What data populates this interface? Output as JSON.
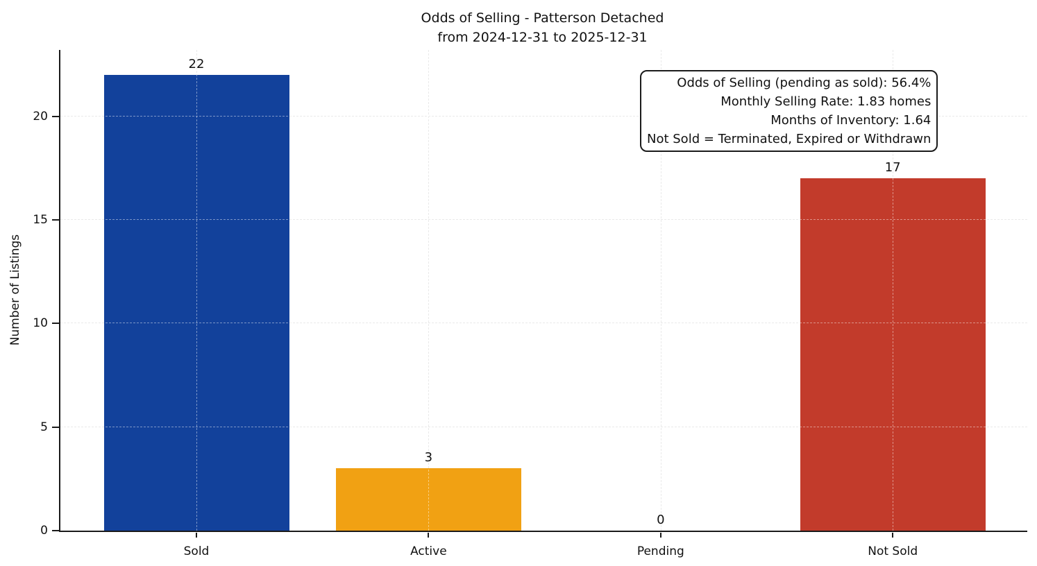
{
  "chart_data": {
    "type": "bar",
    "title_lines": [
      "Odds of Selling - Patterson Detached",
      "from 2024-12-31 to 2025-12-31"
    ],
    "categories": [
      "Sold",
      "Active",
      "Pending",
      "Not Sold"
    ],
    "values": [
      22,
      3,
      0,
      17
    ],
    "bar_value_labels": [
      "22",
      "3",
      "0",
      "17"
    ],
    "bar_colors": [
      "#12419b",
      "#f1a113",
      null,
      "#c23b2b"
    ],
    "xlabel": "",
    "ylabel": "Number of Listings",
    "yticks": [
      0,
      5,
      10,
      15,
      20
    ],
    "ylim": [
      0,
      23.2
    ],
    "grid": {
      "style": "dashed",
      "color": "#d8d8d8"
    },
    "legend_position": "none",
    "annotation": {
      "lines": [
        "Odds of Selling (pending as sold): 56.4%",
        "Monthly Selling Rate: 1.83 homes",
        "Months of Inventory: 1.64",
        "Not Sold = Terminated, Expired or Withdrawn"
      ]
    }
  }
}
